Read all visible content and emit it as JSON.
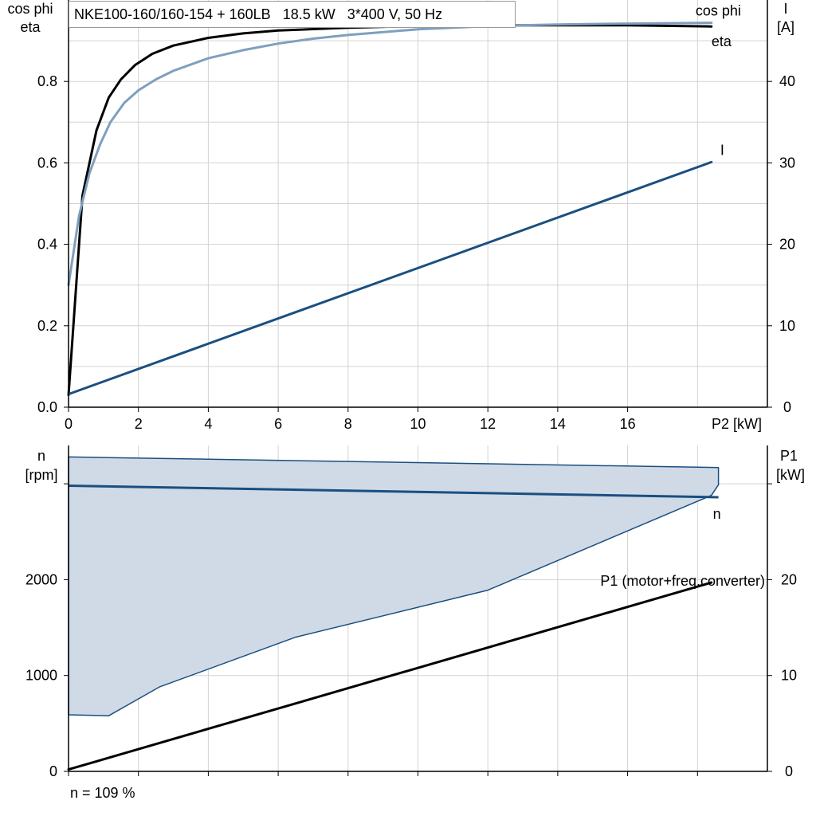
{
  "chart_data": [
    {
      "type": "line",
      "title": "NKE100-160/160-154 + 160LB   18.5 kW   3*400 V, 50 Hz",
      "xlabel": "P2 [kW]",
      "xlim": [
        0,
        20
      ],
      "x_ticks": [
        "0",
        "2",
        "4",
        "6",
        "8",
        "10",
        "12",
        "14",
        "16"
      ],
      "ylabel_left": [
        "cos phi",
        "eta"
      ],
      "ylim_left": [
        0,
        1
      ],
      "y_ticks_left": [
        "0.0",
        "0.2",
        "0.4",
        "0.6",
        "0.8"
      ],
      "ylabel_right": [
        "I",
        "[A]"
      ],
      "ylim_right": [
        0,
        50
      ],
      "y_ticks_right": [
        "0",
        "10",
        "20",
        "30",
        "40"
      ],
      "grid": true,
      "series": [
        {
          "name": "eta",
          "axis": "left",
          "color": "#000000",
          "x": [
            0,
            0.4,
            0.8,
            1.15,
            1.5,
            1.9,
            2.4,
            3,
            4,
            5,
            6,
            8,
            10,
            12,
            14,
            16,
            18.4
          ],
          "y": [
            0.03,
            0.52,
            0.68,
            0.76,
            0.805,
            0.84,
            0.868,
            0.888,
            0.907,
            0.918,
            0.925,
            0.932,
            0.936,
            0.938,
            0.938,
            0.938,
            0.935
          ]
        },
        {
          "name": "cos phi",
          "axis": "left",
          "color": "#7f9fbf",
          "x": [
            0,
            0.3,
            0.6,
            0.9,
            1.2,
            1.6,
            2,
            2.5,
            3,
            4,
            5,
            6,
            7,
            8,
            10,
            12,
            14,
            16,
            18.4
          ],
          "y": [
            0.3,
            0.47,
            0.575,
            0.645,
            0.7,
            0.748,
            0.778,
            0.805,
            0.826,
            0.857,
            0.877,
            0.893,
            0.905,
            0.914,
            0.928,
            0.936,
            0.94,
            0.942,
            0.944
          ]
        },
        {
          "name": "I",
          "axis": "right",
          "color": "#1a4f80",
          "x": [
            0,
            18.4
          ],
          "y": [
            1.6,
            30.1
          ]
        }
      ]
    },
    {
      "type": "area",
      "xlim": [
        0,
        20
      ],
      "ylabel_left": [
        "n",
        "[rpm]"
      ],
      "ylim_left": [
        0,
        3400
      ],
      "y_ticks_left": [
        "0",
        "1000",
        "2000"
      ],
      "ylabel_right": [
        "P1",
        "[kW]"
      ],
      "ylim_right": [
        0,
        34
      ],
      "y_ticks_right": [
        "0",
        "10",
        "20"
      ],
      "grid": true,
      "footnote": "n = 109 %",
      "envelope": {
        "color": "#1a4f80",
        "fill": "#cfdae6",
        "x": [
          0,
          18.6,
          18.6,
          18.4,
          12,
          6.5,
          2.6,
          1.15,
          0,
          0
        ],
        "y": [
          3280,
          3170,
          2990,
          2880,
          1890,
          1400,
          880,
          580,
          590,
          3280
        ]
      },
      "series": [
        {
          "name": "n",
          "axis": "left",
          "color": "#1a4f80",
          "x": [
            0,
            18.6
          ],
          "y": [
            2980,
            2860
          ]
        },
        {
          "name": "P1 (motor+freq.converter)",
          "axis": "right",
          "color": "#000000",
          "x": [
            0,
            18.4
          ],
          "y": [
            0.2,
            19.7
          ]
        }
      ]
    }
  ]
}
